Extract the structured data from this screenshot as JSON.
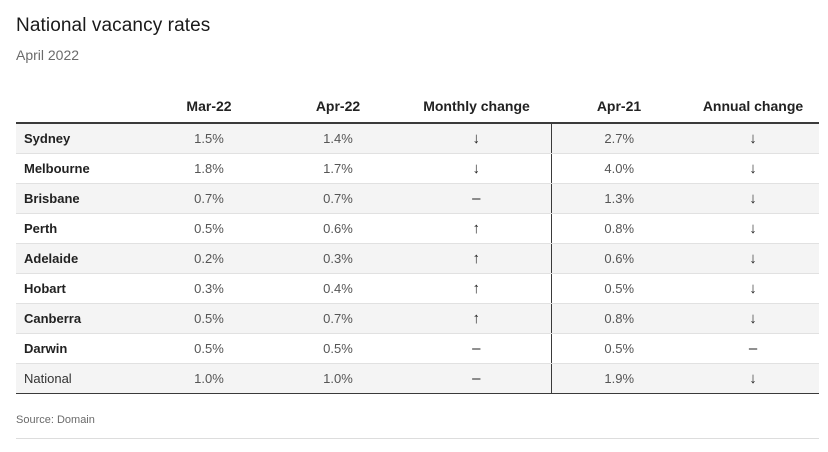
{
  "title": "National vacancy rates",
  "subtitle": "April 2022",
  "source": "Source: Domain",
  "chart_data": {
    "type": "table",
    "title": "National vacancy rates",
    "subtitle": "April 2022",
    "columns": [
      "",
      "Mar-22",
      "Apr-22",
      "Monthly change",
      "Apr-21",
      "Annual change"
    ],
    "rows": [
      {
        "city": "Sydney",
        "mar22": "1.5%",
        "apr22": "1.4%",
        "monthly": "↓",
        "apr21": "2.7%",
        "annual": "↓"
      },
      {
        "city": "Melbourne",
        "mar22": "1.8%",
        "apr22": "1.7%",
        "monthly": "↓",
        "apr21": "4.0%",
        "annual": "↓"
      },
      {
        "city": "Brisbane",
        "mar22": "0.7%",
        "apr22": "0.7%",
        "monthly": "–",
        "apr21": "1.3%",
        "annual": "↓"
      },
      {
        "city": "Perth",
        "mar22": "0.5%",
        "apr22": "0.6%",
        "monthly": "↑",
        "apr21": "0.8%",
        "annual": "↓"
      },
      {
        "city": "Adelaide",
        "mar22": "0.2%",
        "apr22": "0.3%",
        "monthly": "↑",
        "apr21": "0.6%",
        "annual": "↓"
      },
      {
        "city": "Hobart",
        "mar22": "0.3%",
        "apr22": "0.4%",
        "monthly": "↑",
        "apr21": "0.5%",
        "annual": "↓"
      },
      {
        "city": "Canberra",
        "mar22": "0.5%",
        "apr22": "0.7%",
        "monthly": "↑",
        "apr21": "0.8%",
        "annual": "↓"
      },
      {
        "city": "Darwin",
        "mar22": "0.5%",
        "apr22": "0.5%",
        "monthly": "–",
        "apr21": "0.5%",
        "annual": "–"
      },
      {
        "city": "National",
        "mar22": "1.0%",
        "apr22": "1.0%",
        "monthly": "–",
        "apr21": "1.9%",
        "annual": "↓"
      }
    ]
  }
}
